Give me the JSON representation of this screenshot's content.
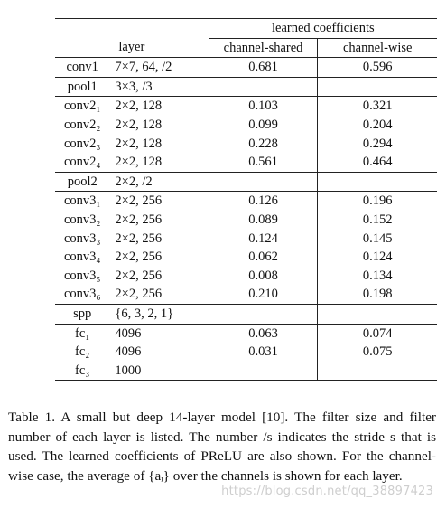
{
  "table": {
    "group_header": "learned coefficients",
    "col_layer": "layer",
    "col_shared": "channel-shared",
    "col_wise": "channel-wise",
    "rows": [
      {
        "layer": "conv1",
        "filter": "7×7, 64, /2",
        "shared": "0.681",
        "wise": "0.596"
      },
      {
        "layer": "pool1",
        "filter": "3×3, /3",
        "shared": "",
        "wise": ""
      },
      {
        "layer": "conv2₁",
        "filter": "2×2, 128",
        "shared": "0.103",
        "wise": "0.321"
      },
      {
        "layer": "conv2₂",
        "filter": "2×2, 128",
        "shared": "0.099",
        "wise": "0.204"
      },
      {
        "layer": "conv2₃",
        "filter": "2×2, 128",
        "shared": "0.228",
        "wise": "0.294"
      },
      {
        "layer": "conv2₄",
        "filter": "2×2, 128",
        "shared": "0.561",
        "wise": "0.464"
      },
      {
        "layer": "pool2",
        "filter": "2×2, /2",
        "shared": "",
        "wise": ""
      },
      {
        "layer": "conv3₁",
        "filter": "2×2, 256",
        "shared": "0.126",
        "wise": "0.196"
      },
      {
        "layer": "conv3₂",
        "filter": "2×2, 256",
        "shared": "0.089",
        "wise": "0.152"
      },
      {
        "layer": "conv3₃",
        "filter": "2×2, 256",
        "shared": "0.124",
        "wise": "0.145"
      },
      {
        "layer": "conv3₄",
        "filter": "2×2, 256",
        "shared": "0.062",
        "wise": "0.124"
      },
      {
        "layer": "conv3₅",
        "filter": "2×2, 256",
        "shared": "0.008",
        "wise": "0.134"
      },
      {
        "layer": "conv3₆",
        "filter": "2×2, 256",
        "shared": "0.210",
        "wise": "0.198"
      },
      {
        "layer": "spp",
        "filter": "{6, 3, 2, 1}",
        "shared": "",
        "wise": ""
      },
      {
        "layer": "fc₁",
        "filter": "4096",
        "shared": "0.063",
        "wise": "0.074"
      },
      {
        "layer": "fc₂",
        "filter": "4096",
        "shared": "0.031",
        "wise": "0.075"
      },
      {
        "layer": "fc₃",
        "filter": "1000",
        "shared": "",
        "wise": ""
      }
    ]
  },
  "caption": "Table 1. A small but deep 14-layer model [10]. The filter size and filter number of each layer is listed. The number /s indicates the stride s that is used. The learned coefficients of PReLU are also shown. For the channel-wise case, the average of {aᵢ} over the channels is shown for each layer.",
  "watermark": "https://blog.csdn.net/qq_38897423"
}
